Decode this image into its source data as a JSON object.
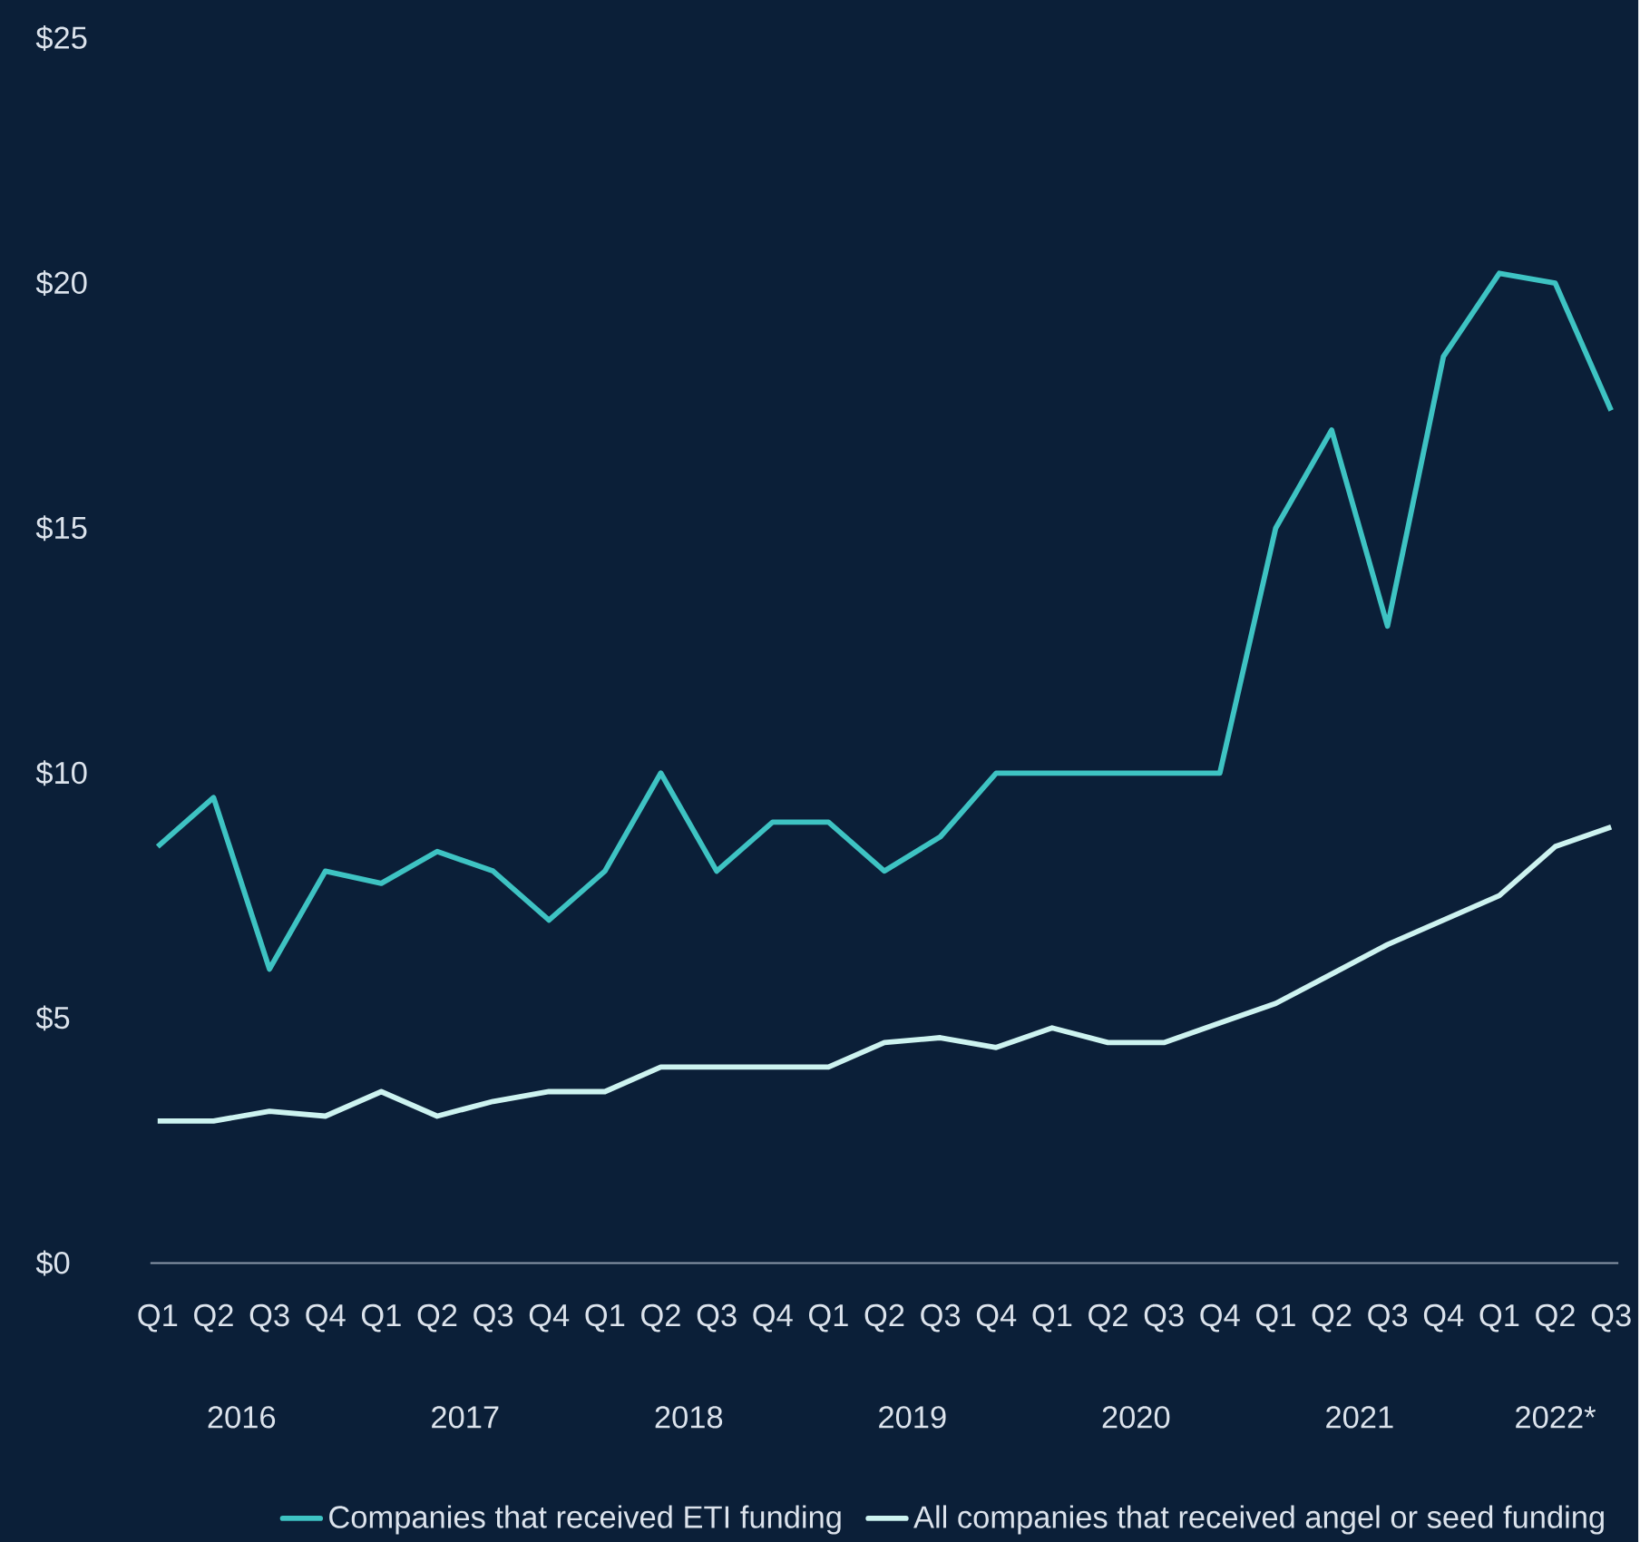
{
  "chart_data": {
    "type": "line",
    "categories": [
      "Q1",
      "Q2",
      "Q3",
      "Q4",
      "Q1",
      "Q2",
      "Q3",
      "Q4",
      "Q1",
      "Q2",
      "Q3",
      "Q4",
      "Q1",
      "Q2",
      "Q3",
      "Q4",
      "Q1",
      "Q2",
      "Q3",
      "Q4",
      "Q1",
      "Q2",
      "Q3",
      "Q4",
      "Q1",
      "Q2",
      "Q3"
    ],
    "annotations": [
      "2016",
      "2017",
      "2018",
      "2019",
      "2020",
      "2021",
      "2022*"
    ],
    "series": [
      {
        "name": "Companies that received ETI funding",
        "color": "#3ec3c3",
        "values": [
          8.5,
          9.5,
          6,
          8,
          7.75,
          8.4,
          8,
          7,
          8,
          10,
          8,
          9,
          9,
          8,
          8.7,
          10,
          10,
          10,
          10,
          10,
          15,
          17,
          13,
          18.5,
          20.2,
          20,
          17.4
        ]
      },
      {
        "name": "All companies that received angel or seed funding",
        "color": "#cdf3f0",
        "values": [
          2.9,
          2.9,
          3.1,
          3,
          3.5,
          3,
          3.3,
          3.5,
          3.5,
          4,
          4,
          4,
          4,
          4.5,
          4.6,
          4.4,
          4.8,
          4.5,
          4.5,
          4.9,
          5.3,
          5.9,
          6.5,
          7,
          7.5,
          8.5,
          8.9
        ]
      }
    ],
    "ylim": [
      0,
      25
    ],
    "yticks": [
      {
        "value": 0,
        "label": "$0"
      },
      {
        "value": 5,
        "label": "$5"
      },
      {
        "value": 10,
        "label": "$10"
      },
      {
        "value": 15,
        "label": "$15"
      },
      {
        "value": 20,
        "label": "$20"
      },
      {
        "value": 25,
        "label": "$25"
      }
    ],
    "grid": false,
    "legend": "bottom",
    "marker": "none",
    "line_style": "solid"
  }
}
